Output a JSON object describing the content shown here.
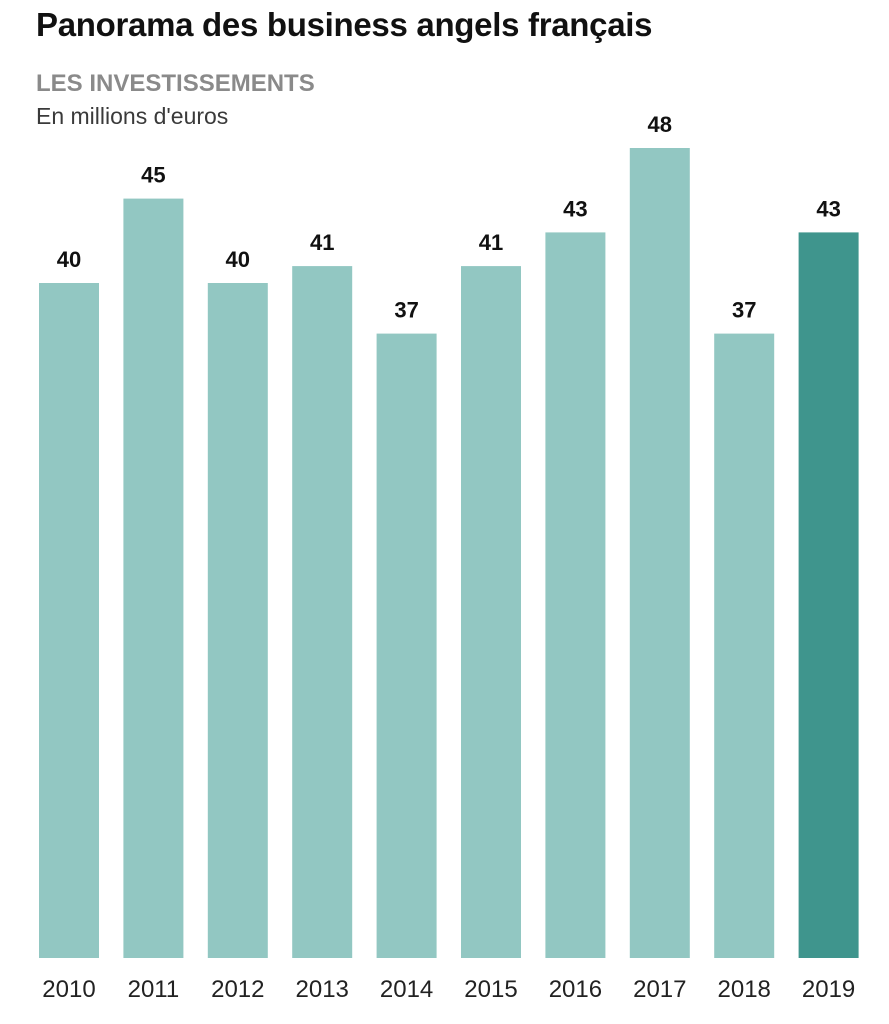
{
  "chart_data": {
    "type": "bar",
    "title": "Panorama des business angels français",
    "subtitle": "LES INVESTISSEMENTS",
    "ylabel": "En millions d'euros",
    "categories": [
      "2010",
      "2011",
      "2012",
      "2013",
      "2014",
      "2015",
      "2016",
      "2017",
      "2018",
      "2019"
    ],
    "values": [
      40,
      45,
      40,
      41,
      37,
      41,
      43,
      48,
      37,
      43
    ],
    "data_labels": [
      "40",
      "45",
      "40",
      "41",
      "37",
      "41",
      "43",
      "48",
      "37",
      "43"
    ],
    "highlight_index": 9,
    "ylim": [
      0,
      48
    ],
    "grid": false,
    "legend": "none",
    "colors": {
      "bar": "#92c7c2",
      "highlight": "#3f958d"
    }
  }
}
